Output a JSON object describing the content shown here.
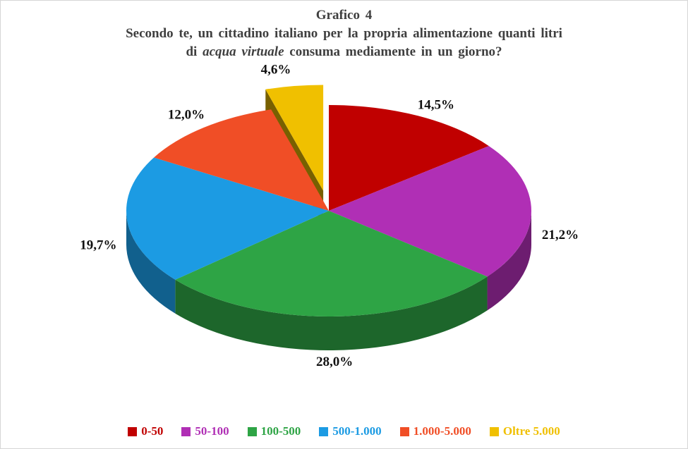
{
  "page": {
    "background": "#FFFFFF",
    "border_color": "#D6D6D6"
  },
  "title": {
    "line1": "Grafico 4",
    "line2": "Secondo te, un cittadino italiano per la propria alimentazione quanti litri",
    "line3_prefix": "di ",
    "line3_italic": "acqua virtuale",
    "line3_suffix": " consuma mediamente in un giorno?"
  },
  "chart_data": {
    "type": "pie",
    "style": "3d-exploded",
    "title": "Grafico 4",
    "subtitle": "Secondo te, un cittadino italiano per la propria alimentazione quanti litri di acqua virtuale consuma mediamente in un giorno?",
    "categories": [
      "0-50",
      "50-100",
      "100-500",
      "500-1.000",
      "1.000-5.000",
      "Oltre 5.000"
    ],
    "values": [
      14.5,
      21.2,
      28.0,
      19.7,
      12.0,
      4.6
    ],
    "labels": [
      "14,5%",
      "21,2%",
      "28,0%",
      "19,7%",
      "12,0%",
      "4,6%"
    ],
    "colors": [
      "#C00000",
      "#B02FB5",
      "#2EA445",
      "#1C9BE3",
      "#F04E26",
      "#F0C000"
    ],
    "exploded_index": 5,
    "start_angle_deg": 0,
    "direction": "clockwise",
    "legend_position": "bottom",
    "label_color": "#111111",
    "title_color": "#3F3F3F"
  }
}
